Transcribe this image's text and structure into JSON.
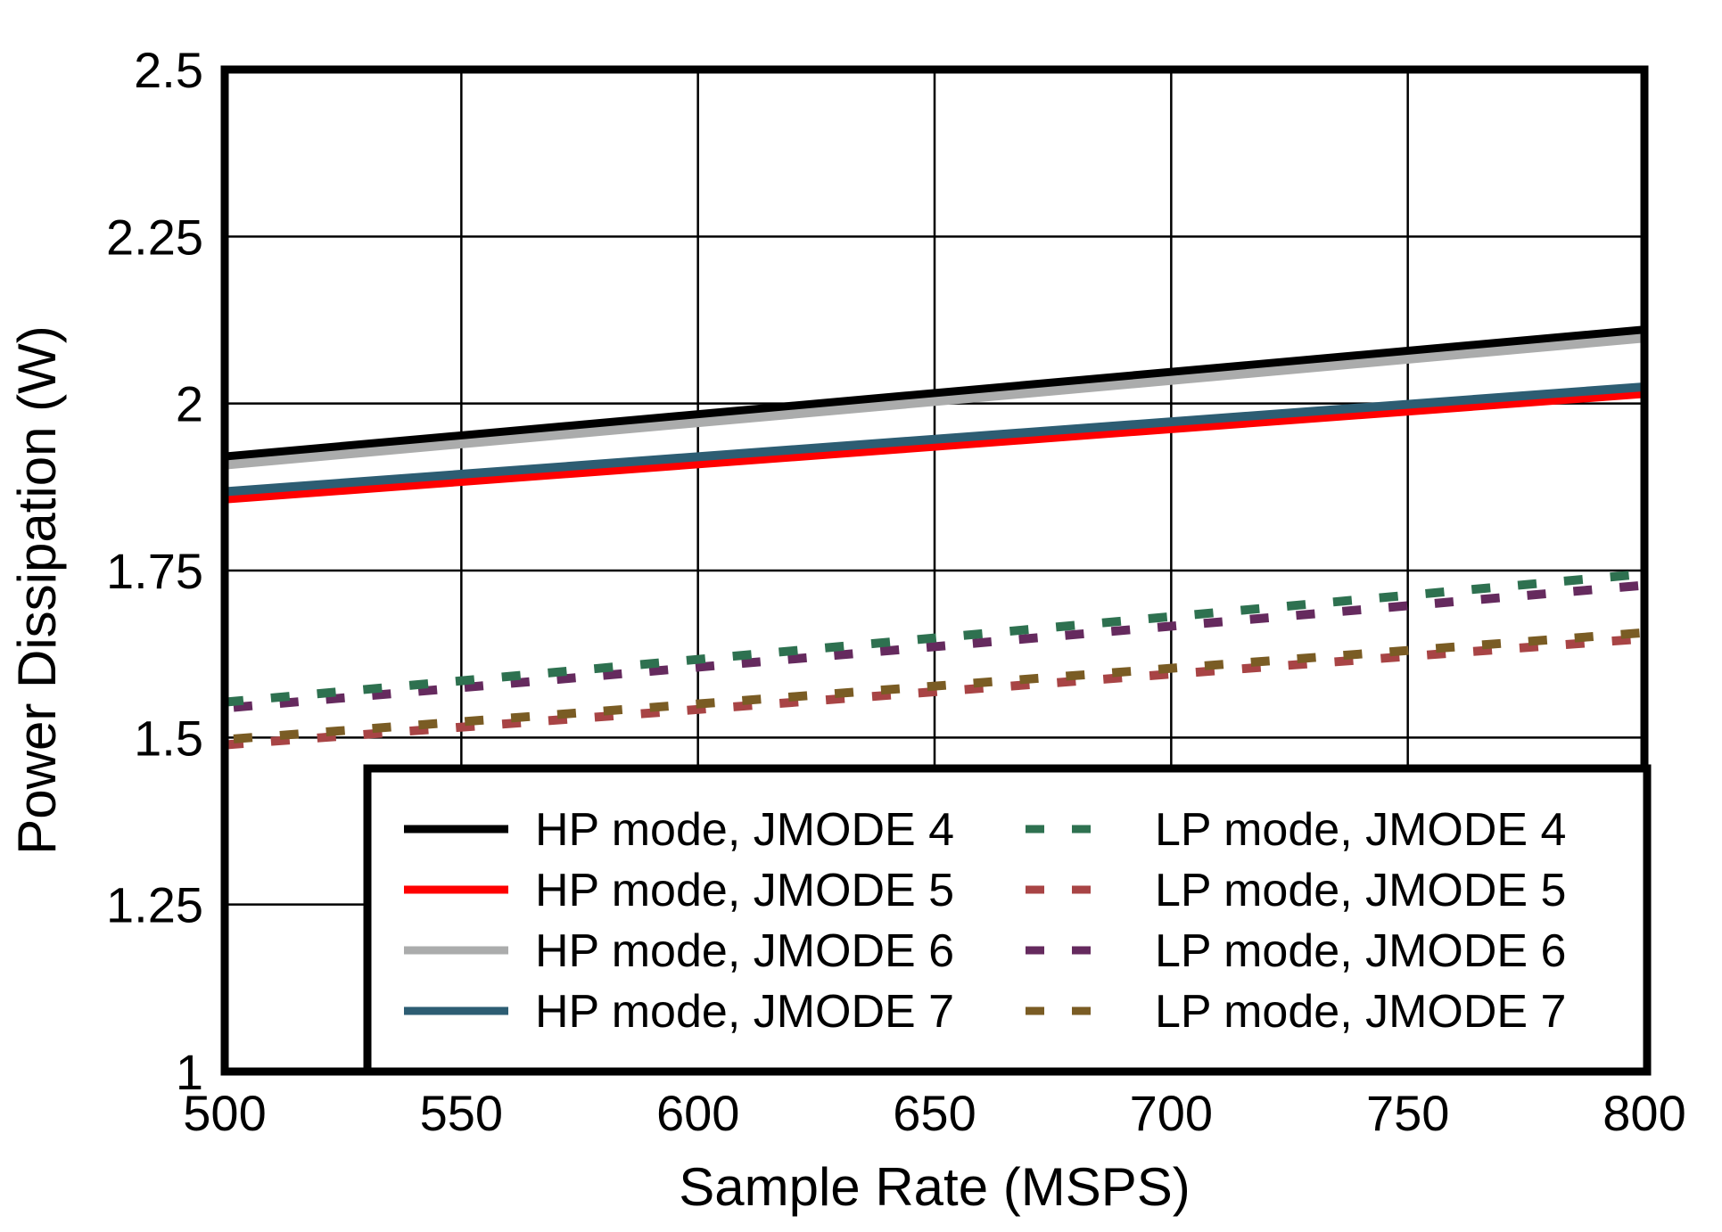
{
  "chart_data": {
    "type": "line",
    "title": "",
    "xlabel": "Sample Rate (MSPS)",
    "ylabel": "Power Dissipation (W)",
    "xlim": [
      500,
      800
    ],
    "ylim": [
      1.0,
      2.5
    ],
    "xticks": [
      500,
      550,
      600,
      650,
      700,
      750,
      800
    ],
    "yticks": [
      1,
      1.25,
      1.5,
      1.75,
      2,
      2.25,
      2.5
    ],
    "grid": true,
    "legend_position": "inside-bottom",
    "legend_columns": 2,
    "x": [
      500,
      800
    ],
    "series": [
      {
        "name": "HP mode, JMODE 4",
        "style": "solid",
        "color": "#000000",
        "values": [
          1.92,
          2.11
        ]
      },
      {
        "name": "HP mode, JMODE 5",
        "style": "solid",
        "color": "#FF0000",
        "values": [
          1.857,
          2.015
        ]
      },
      {
        "name": "HP mode, JMODE 6",
        "style": "solid",
        "color": "#ABACAC",
        "values": [
          1.908,
          2.098
        ]
      },
      {
        "name": "HP mode, JMODE 7",
        "style": "solid",
        "color": "#2D5D73",
        "values": [
          1.868,
          2.025
        ]
      },
      {
        "name": "LP mode, JMODE 4",
        "style": "dashed",
        "color": "#2E7150",
        "values": [
          1.553,
          1.745
        ]
      },
      {
        "name": "LP mode, JMODE 5",
        "style": "dashed",
        "color": "#A84445",
        "values": [
          1.489,
          1.648
        ]
      },
      {
        "name": "LP mode, JMODE 6",
        "style": "dashed",
        "color": "#652A5E",
        "values": [
          1.544,
          1.728
        ]
      },
      {
        "name": "LP mode, JMODE 7",
        "style": "dashed",
        "color": "#7A5C24",
        "values": [
          1.497,
          1.657
        ]
      }
    ]
  }
}
